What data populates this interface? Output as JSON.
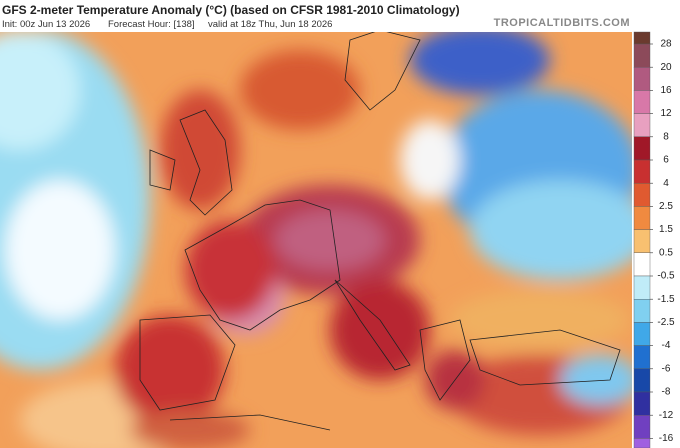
{
  "header": {
    "title": "GFS 2-meter Temperature Anomaly (°C) (based on CFSR 1981-2010 Climatology)",
    "init": "Init: 00z Jun 13 2026",
    "forecast_hour": "Forecast Hour: [138]",
    "valid": "valid at 18z Thu, Jun 18 2026",
    "brand": "TROPICALTIDBITS.COM"
  },
  "colorbar": {
    "ticks": [
      28,
      20,
      16,
      12,
      8,
      6,
      4,
      2.5,
      1.5,
      0.5,
      -0.5,
      -1.5,
      -2.5,
      -4,
      -6,
      -8,
      -12,
      -16
    ],
    "colors": [
      "#6b3a2e",
      "#8c4a5a",
      "#b05a80",
      "#d878a8",
      "#e8a0c0",
      "#a01828",
      "#c83030",
      "#e05a30",
      "#f08a40",
      "#f8c070",
      "#ffffff",
      "#c0ecf8",
      "#80d0f0",
      "#40a8e8",
      "#2070d0",
      "#1848a8",
      "#3030a0",
      "#7040c0",
      "#a060e0"
    ]
  }
}
